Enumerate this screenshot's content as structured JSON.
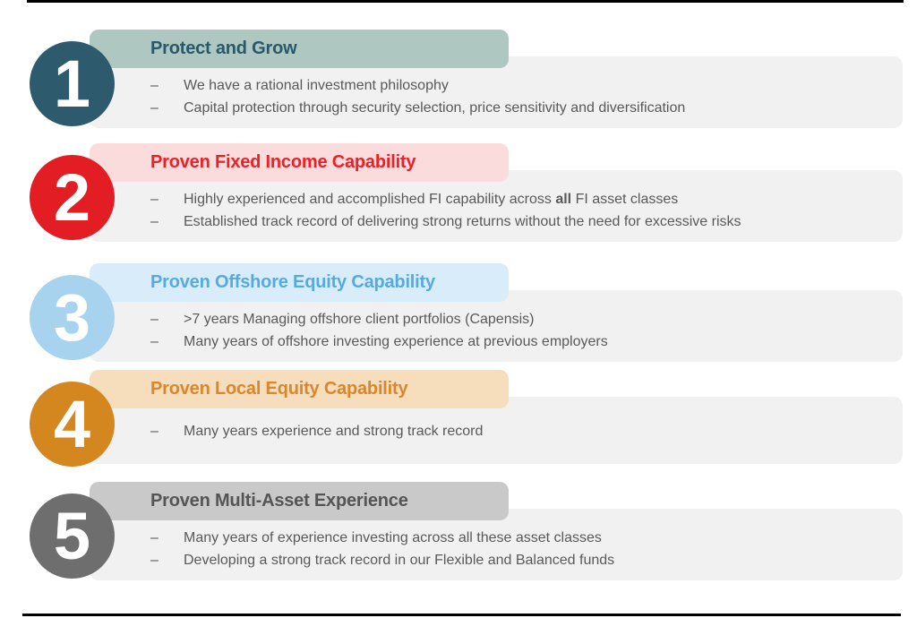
{
  "slide": {
    "background": "#FFFFFF",
    "rule_color": "#000000",
    "panel_color": "#F1F1F2",
    "body_text_color": "#595959",
    "number_text_color": "#FFFFFF",
    "bullet_dash": "–"
  },
  "rows": [
    {
      "number": "1",
      "title": "Protect and Grow",
      "colors": {
        "circle": "#2D5A6C",
        "bar": "#AEC7C1",
        "title": "#29586A"
      },
      "bullets": [
        {
          "parts": [
            {
              "text": "We have a rational investment philosophy"
            }
          ]
        },
        {
          "parts": [
            {
              "text": "Capital protection through security selection, price sensitivity and diversification"
            }
          ]
        }
      ]
    },
    {
      "number": "2",
      "title": "Proven Fixed Income Capability",
      "colors": {
        "circle": "#E21E24",
        "bar": "#FADCDC",
        "title": "#EC2026"
      },
      "bullets": [
        {
          "parts": [
            {
              "text": "Highly experienced and accomplished FI capability across "
            },
            {
              "text": "all",
              "bold": true
            },
            {
              "text": " FI asset classes"
            }
          ]
        },
        {
          "parts": [
            {
              "text": "Established track record of delivering strong returns without the need for excessive risks"
            }
          ]
        }
      ]
    },
    {
      "number": "3",
      "title": "Proven Offshore Equity Capability",
      "colors": {
        "circle": "#A7D3EF",
        "bar": "#D9ECF9",
        "title": "#55ABDF"
      },
      "bullets": [
        {
          "parts": [
            {
              "text": ">7 years Managing offshore client portfolios (Capensis)"
            }
          ]
        },
        {
          "parts": [
            {
              "text": "Many years of offshore investing experience at previous employers"
            }
          ]
        }
      ]
    },
    {
      "number": "4",
      "title": "Proven Local Equity Capability",
      "colors": {
        "circle": "#D4861F",
        "bar": "#F6DDBC",
        "title": "#D9872F"
      },
      "bullets": [
        {
          "parts": [
            {
              "text": "Many years experience and strong track record"
            }
          ]
        }
      ]
    },
    {
      "number": "5",
      "title": "Proven Multi-Asset Experience",
      "colors": {
        "circle": "#6E6E6E",
        "bar": "#C9C9C9",
        "title": "#555555"
      },
      "bullets": [
        {
          "parts": [
            {
              "text": "Many years of experience investing across all these asset classes"
            }
          ]
        },
        {
          "parts": [
            {
              "text": "Developing a strong track record in our Flexible and Balanced funds"
            }
          ]
        }
      ]
    }
  ]
}
